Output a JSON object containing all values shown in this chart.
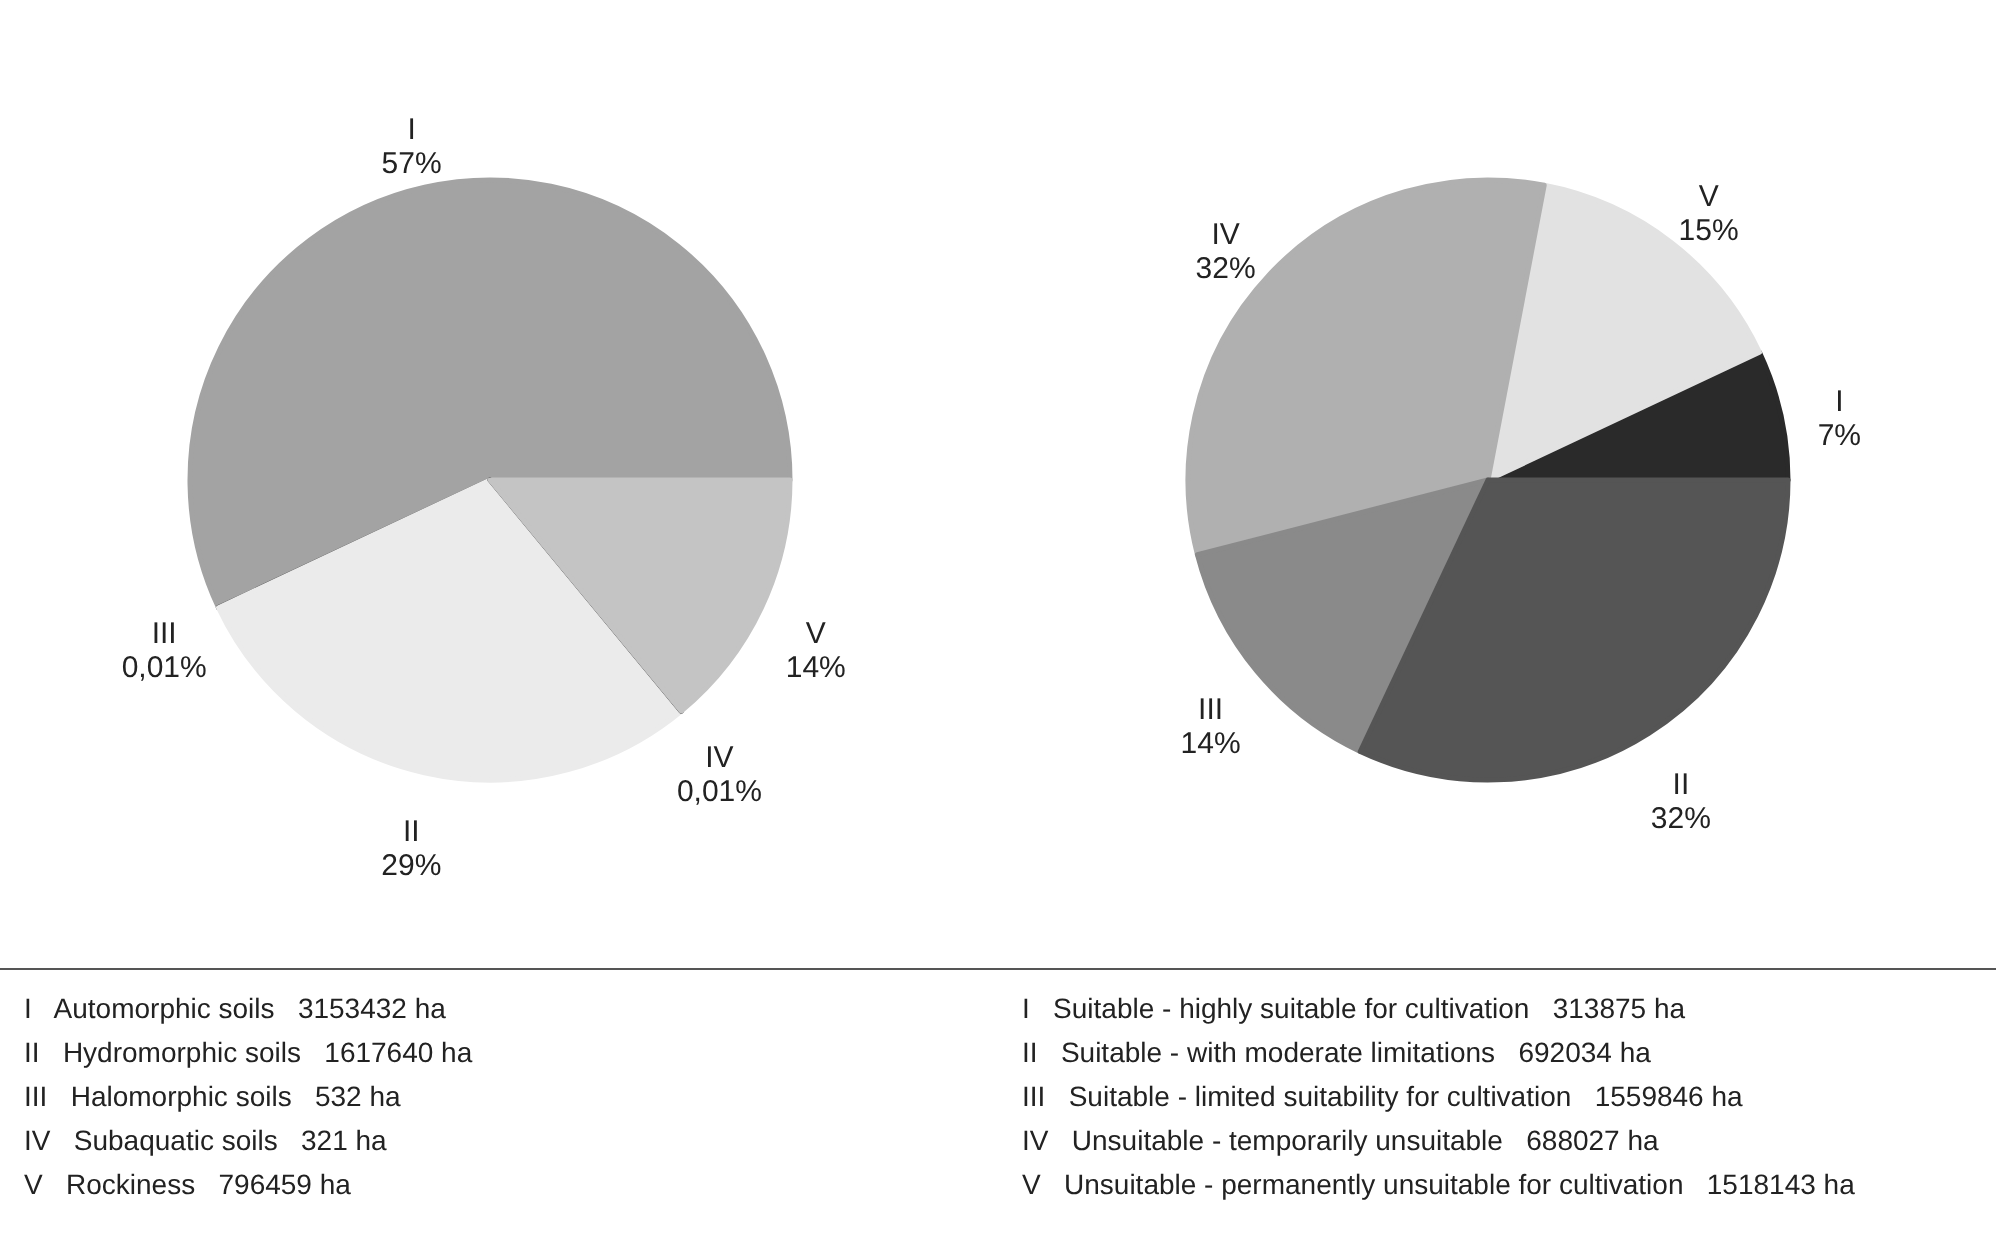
{
  "chart_data": [
    {
      "type": "pie",
      "categories": [
        "I",
        "III",
        "II",
        "IV",
        "V"
      ],
      "values": [
        57,
        0.01,
        29,
        0.01,
        14
      ],
      "value_labels": [
        "57%",
        "0,01%",
        "29%",
        "0,01%",
        "14%"
      ],
      "colors": [
        "#a3a3a3",
        "#333333",
        "#ebebeb",
        "#222222",
        "#c4c4c4"
      ],
      "annotations": [
        "I   Automorphic soils   3153432 ha",
        "II   Hydromorphic soils   1617640 ha",
        "III   Halomorphic soils   532 ha",
        "IV   Subaquatic soils   321 ha",
        "V   Rockiness   796459 ha"
      ]
    },
    {
      "type": "pie",
      "categories": [
        "I",
        "V",
        "IV",
        "III",
        "II"
      ],
      "values": [
        7,
        15,
        32,
        14,
        32
      ],
      "value_labels": [
        "7%",
        "15%",
        "32%",
        "14%",
        "32%"
      ],
      "colors": [
        "#2a2a2a",
        "#e2e2e2",
        "#b0b0b0",
        "#8a8a8a",
        "#555555"
      ],
      "annotations": [
        "I   Suitable - highly suitable for cultivation   313875 ha",
        "II   Suitable - with moderate limitations   692034 ha",
        "III   Suitable - limited suitability for cultivation   1559846 ha",
        "IV   Unsuitable - temporarily unsuitable   688027 ha",
        "V   Unsuitable - permanently unsuitable for cultivation   1518143 ha"
      ]
    }
  ]
}
